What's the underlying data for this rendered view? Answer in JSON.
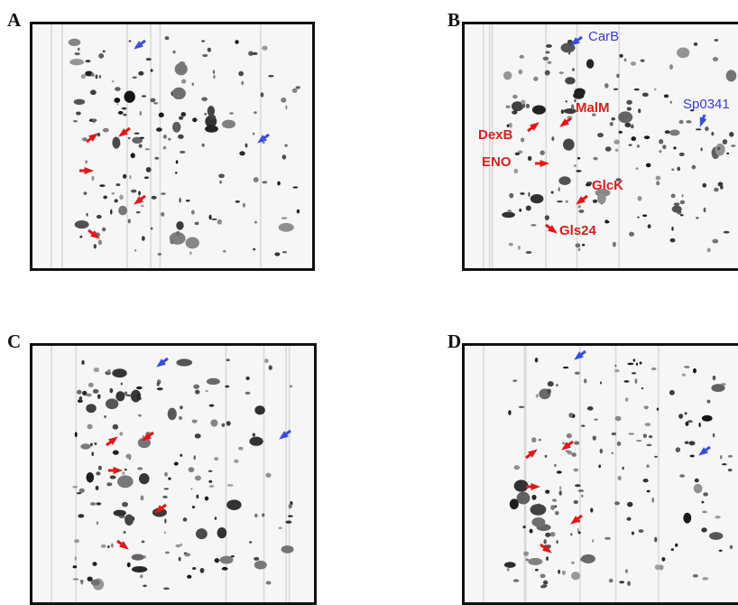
{
  "panels": [
    {
      "letter": "A",
      "labels": []
    },
    {
      "letter": "B",
      "labels": [
        {
          "text": "CarB",
          "color": "#3a3acc"
        },
        {
          "text": "Sp0341",
          "color": "#3a3acc"
        },
        {
          "text": "MalM",
          "color": "#d42020"
        },
        {
          "text": "DexB",
          "color": "#d42020"
        },
        {
          "text": "ENO",
          "color": "#d42020"
        },
        {
          "text": "GlcK",
          "color": "#d42020"
        },
        {
          "text": "Gls24",
          "color": "#d42020"
        }
      ]
    },
    {
      "letter": "C",
      "labels": []
    },
    {
      "letter": "D",
      "labels": []
    }
  ],
  "colors": {
    "red_arrow": "#e01818",
    "blue_arrow": "#3a4fd8",
    "border": "#111111"
  }
}
